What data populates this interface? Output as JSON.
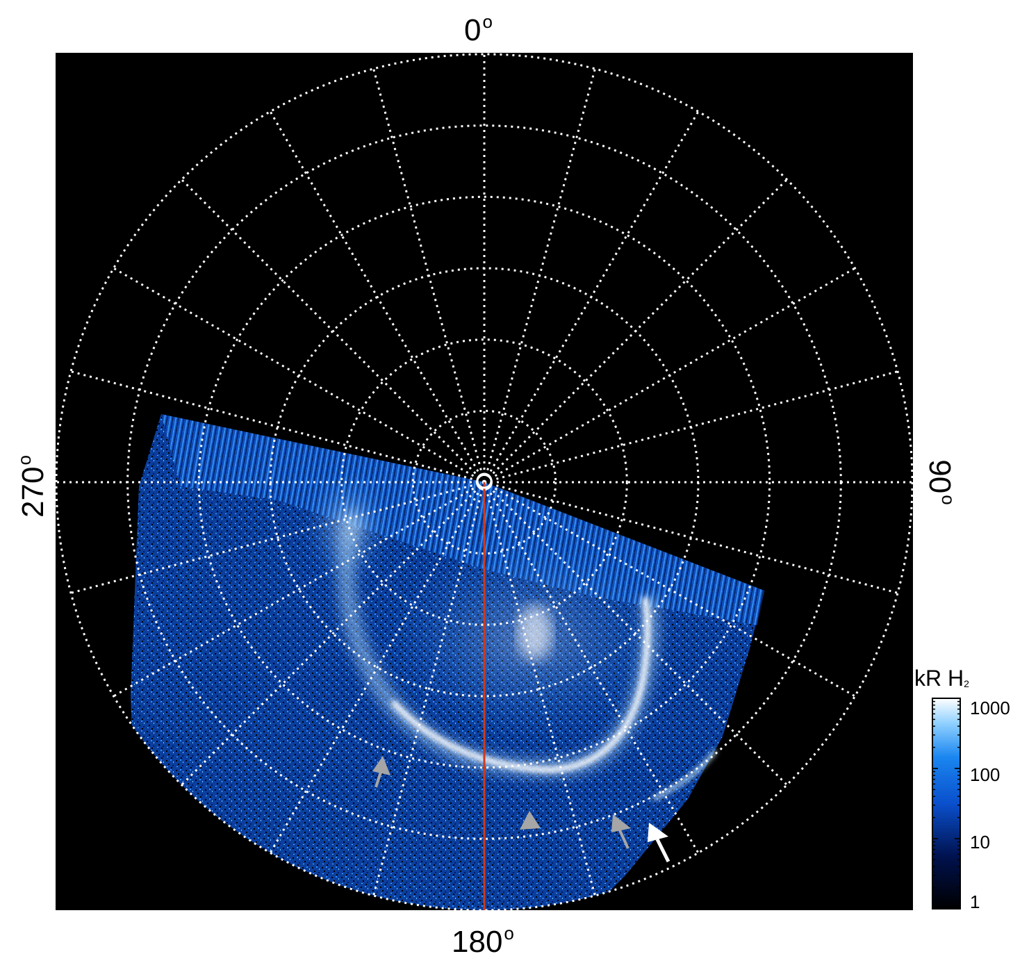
{
  "axis_labels": {
    "top": "0",
    "bottom": "180",
    "left": "270",
    "right": "90",
    "degree_symbol": "o"
  },
  "colorbar": {
    "title": "kR H",
    "title_subscript": "2",
    "ticks": [
      "1000",
      "100",
      "10",
      "1"
    ],
    "scale": "log",
    "range": [
      1,
      1000
    ],
    "colors": [
      "#000000",
      "#00124f",
      "#0a4fcc",
      "#1a86f0",
      "#8fd0ff",
      "#ffffff"
    ]
  },
  "colors": {
    "background": "#000000",
    "grid": "#ffffff",
    "meridian_line": "#d03a1a",
    "arrow_gray": "#a6a6a6",
    "arrow_white": "#ffffff"
  },
  "grid": {
    "meridian_count": 24,
    "circle_count": 6,
    "style": "dotted"
  }
}
